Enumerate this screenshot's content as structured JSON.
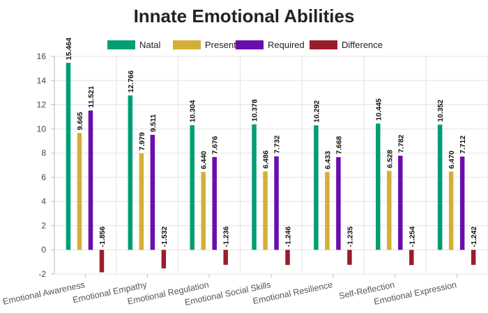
{
  "chart_data": {
    "type": "bar",
    "title": "Innate Emotional Abilities",
    "xlabel": "",
    "ylabel": "",
    "categories": [
      "Emotional Awareness",
      "Emotional Empathy",
      "Emotional Regulation",
      "Emotional Social Skills",
      "Emotional Resilience",
      "Self-Reflection",
      "Emotional Expression"
    ],
    "series": [
      {
        "name": "Natal",
        "color": "#009e73",
        "values": [
          15.464,
          12.766,
          10.304,
          10.378,
          10.292,
          10.445,
          10.352
        ]
      },
      {
        "name": "Present",
        "color": "#d4af37",
        "values": [
          9.665,
          7.979,
          6.44,
          6.486,
          6.433,
          6.528,
          6.47
        ]
      },
      {
        "name": "Required",
        "color": "#6a0dad",
        "values": [
          11.521,
          9.511,
          7.676,
          7.732,
          7.668,
          7.782,
          7.712
        ]
      },
      {
        "name": "Difference",
        "color": "#9b1c2c",
        "values": [
          -1.856,
          -1.532,
          -1.236,
          -1.246,
          -1.235,
          -1.254,
          -1.242
        ]
      }
    ],
    "data_labels": [
      [
        "15.464",
        "9.665",
        "11.521",
        "-1.856"
      ],
      [
        "12.766",
        "7.979",
        "9.511",
        "-1.532"
      ],
      [
        "10.304",
        "6.440",
        "7.676",
        "-1.236"
      ],
      [
        "10.378",
        "6.486",
        "7.732",
        "-1.246"
      ],
      [
        "10.292",
        "6.433",
        "7.668",
        "-1.235"
      ],
      [
        "10.445",
        "6.528",
        "7.782",
        "-1.254"
      ],
      [
        "10.352",
        "6.470",
        "7.712",
        "-1.242"
      ]
    ],
    "ylim": [
      -2,
      16
    ],
    "yticks": [
      -2,
      0,
      2,
      4,
      6,
      8,
      10,
      12,
      14,
      16
    ],
    "ytick_labels": [
      "-2",
      "0",
      "2",
      "4",
      "6",
      "8",
      "10",
      "12",
      "14",
      "16"
    ],
    "grid": true,
    "legend_position": "top-center"
  }
}
